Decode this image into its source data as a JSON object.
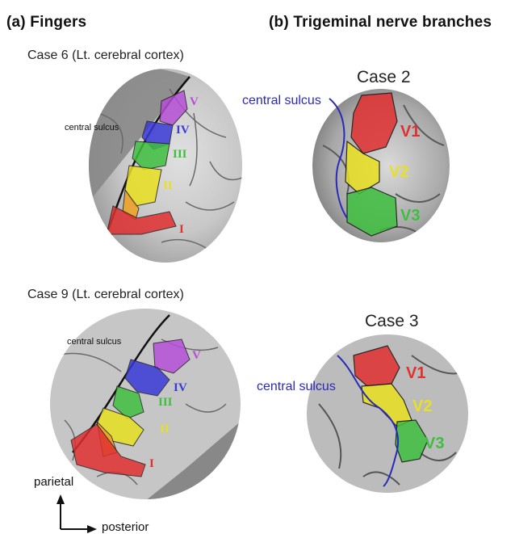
{
  "left": {
    "title": "(a) Fingers",
    "case6": {
      "label": "Case 6 (Lt. cerebral cortex)",
      "sulcus_label": "central sulcus",
      "regions": [
        {
          "label": "V",
          "color": "#b64fd8"
        },
        {
          "label": "IV",
          "color": "#3a3ad8"
        },
        {
          "label": "III",
          "color": "#3fbf3f"
        },
        {
          "label": "II",
          "color": "#e8e020"
        },
        {
          "label": "I",
          "color": "#e03030"
        }
      ]
    },
    "case9": {
      "label": "Case 9 (Lt. cerebral cortex)",
      "sulcus_label": "central sulcus",
      "regions": [
        {
          "label": "V",
          "color": "#b64fd8"
        },
        {
          "label": "IV",
          "color": "#3a3ad8"
        },
        {
          "label": "III",
          "color": "#3fbf3f"
        },
        {
          "label": "II",
          "color": "#e8e020"
        },
        {
          "label": "I",
          "color": "#e03030"
        }
      ]
    },
    "axes": {
      "vertical": "parietal",
      "horizontal": "posterior"
    }
  },
  "right": {
    "title": "(b) Trigeminal nerve branches",
    "case2": {
      "label": "Case 2",
      "sulcus_label": "central sulcus",
      "regions": [
        {
          "label": "V1",
          "color": "#e03030"
        },
        {
          "label": "V2",
          "color": "#e8e020"
        },
        {
          "label": "V3",
          "color": "#3fbf3f"
        }
      ]
    },
    "case3": {
      "label": "Case 3",
      "sulcus_label": "central sulcus",
      "regions": [
        {
          "label": "V1",
          "color": "#e03030"
        },
        {
          "label": "V2",
          "color": "#e8e020"
        },
        {
          "label": "V3",
          "color": "#3fbf3f"
        }
      ]
    }
  }
}
